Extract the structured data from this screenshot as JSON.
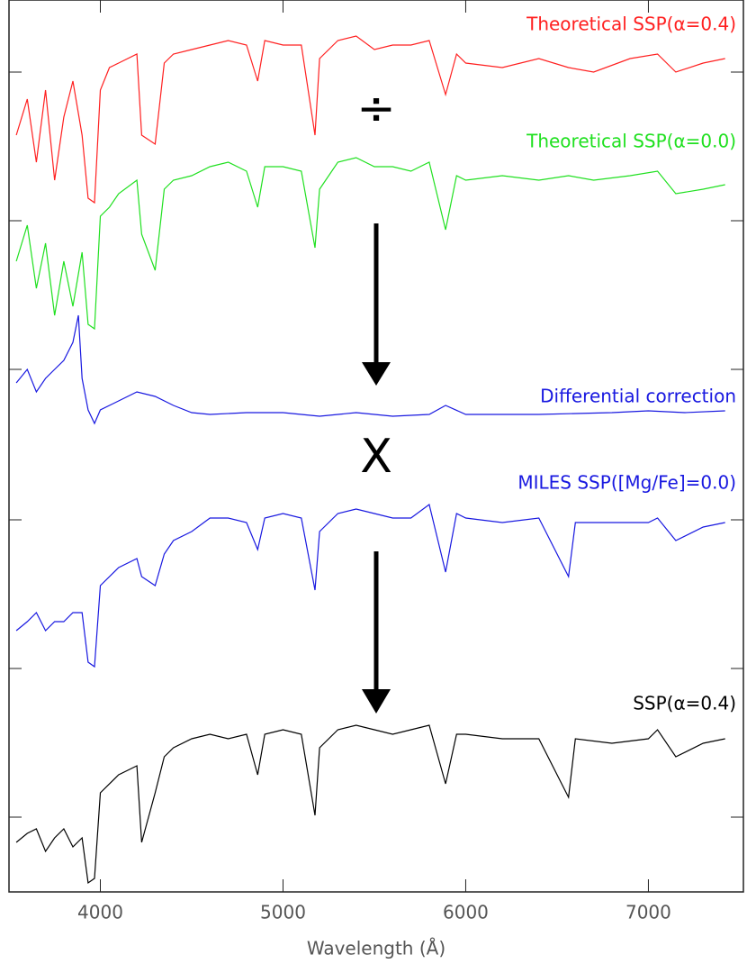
{
  "chart_data": {
    "type": "line",
    "xlabel": "Wavelength (Å)",
    "xlim": [
      3500,
      7520
    ],
    "xticks": [
      4000,
      5000,
      6000,
      7000
    ],
    "ylim": [
      0,
      990
    ],
    "yticks": [
      83,
      248,
      413,
      580,
      745,
      910
    ],
    "show_ytick_labels": false,
    "series": [
      {
        "name": "Theoretical SSP(α=0.4)",
        "color": "#ff2020",
        "x": [
          3540,
          3600,
          3650,
          3700,
          3750,
          3800,
          3850,
          3900,
          3933,
          3968,
          4000,
          4050,
          4100,
          4200,
          4226,
          4300,
          4350,
          4400,
          4500,
          4600,
          4700,
          4800,
          4861,
          4900,
          5000,
          5100,
          5175,
          5200,
          5300,
          5400,
          5500,
          5600,
          5700,
          5800,
          5890,
          5950,
          6000,
          6200,
          6400,
          6563,
          6700,
          6900,
          7050,
          7150,
          7300,
          7420
        ],
        "values": [
          840,
          880,
          810,
          890,
          790,
          860,
          900,
          840,
          770,
          765,
          890,
          915,
          920,
          930,
          840,
          830,
          920,
          930,
          935,
          940,
          945,
          940,
          900,
          945,
          940,
          940,
          840,
          925,
          945,
          950,
          935,
          940,
          940,
          945,
          885,
          930,
          920,
          915,
          925,
          915,
          910,
          925,
          930,
          910,
          920,
          925
        ]
      },
      {
        "name": "Theoretical SSP(α=0.0)",
        "color": "#20e020",
        "x": [
          3540,
          3600,
          3650,
          3700,
          3750,
          3800,
          3850,
          3900,
          3933,
          3968,
          4000,
          4050,
          4100,
          4200,
          4226,
          4300,
          4350,
          4400,
          4500,
          4600,
          4700,
          4800,
          4861,
          4900,
          5000,
          5100,
          5175,
          5200,
          5300,
          5400,
          5500,
          5600,
          5700,
          5800,
          5890,
          5950,
          6000,
          6200,
          6400,
          6563,
          6700,
          6900,
          7050,
          7150,
          7300,
          7420
        ],
        "values": [
          700,
          740,
          670,
          720,
          640,
          700,
          650,
          710,
          630,
          625,
          750,
          760,
          775,
          790,
          730,
          690,
          780,
          790,
          795,
          805,
          810,
          800,
          760,
          805,
          805,
          800,
          715,
          780,
          810,
          815,
          805,
          805,
          800,
          810,
          735,
          795,
          790,
          795,
          790,
          795,
          790,
          795,
          800,
          775,
          780,
          785
        ]
      },
      {
        "name": "Differential correction",
        "color": "#1818e0",
        "x": [
          3540,
          3600,
          3650,
          3700,
          3750,
          3800,
          3850,
          3880,
          3900,
          3933,
          3968,
          4000,
          4100,
          4200,
          4300,
          4400,
          4500,
          4600,
          4800,
          5000,
          5200,
          5400,
          5600,
          5800,
          5890,
          6000,
          6400,
          6800,
          7000,
          7200,
          7420
        ],
        "values": [
          565,
          580,
          555,
          570,
          580,
          590,
          610,
          640,
          570,
          535,
          520,
          535,
          545,
          555,
          550,
          540,
          532,
          530,
          532,
          532,
          528,
          532,
          528,
          530,
          540,
          530,
          530,
          532,
          534,
          532,
          534
        ]
      },
      {
        "name": "MILES SSP([Mg/Fe]=0.0)",
        "color": "#1818e0",
        "x": [
          3540,
          3600,
          3650,
          3700,
          3750,
          3800,
          3850,
          3900,
          3933,
          3968,
          4000,
          4100,
          4200,
          4226,
          4300,
          4350,
          4400,
          4500,
          4600,
          4700,
          4800,
          4861,
          4900,
          5000,
          5100,
          5175,
          5200,
          5300,
          5400,
          5500,
          5600,
          5700,
          5800,
          5890,
          5950,
          6000,
          6200,
          6400,
          6563,
          6600,
          6800,
          7000,
          7050,
          7150,
          7300,
          7420
        ],
        "values": [
          290,
          300,
          310,
          290,
          300,
          300,
          310,
          310,
          255,
          250,
          340,
          360,
          370,
          350,
          340,
          375,
          390,
          400,
          415,
          415,
          410,
          380,
          415,
          420,
          415,
          335,
          400,
          420,
          425,
          420,
          415,
          415,
          430,
          355,
          420,
          415,
          410,
          415,
          350,
          410,
          410,
          410,
          415,
          390,
          405,
          410
        ]
      },
      {
        "name": "SSP(α=0.4)",
        "color": "#000000",
        "x": [
          3540,
          3600,
          3650,
          3700,
          3750,
          3800,
          3850,
          3900,
          3933,
          3968,
          4000,
          4100,
          4200,
          4226,
          4300,
          4350,
          4400,
          4500,
          4600,
          4700,
          4800,
          4861,
          4900,
          5000,
          5100,
          5175,
          5200,
          5300,
          5400,
          5500,
          5600,
          5700,
          5800,
          5890,
          5950,
          6000,
          6200,
          6400,
          6563,
          6600,
          6800,
          7000,
          7050,
          7150,
          7300,
          7420
        ],
        "values": [
          55,
          65,
          70,
          45,
          60,
          70,
          50,
          60,
          10,
          15,
          110,
          130,
          140,
          55,
          110,
          150,
          160,
          170,
          175,
          170,
          175,
          130,
          175,
          180,
          175,
          85,
          160,
          180,
          185,
          180,
          175,
          180,
          185,
          120,
          175,
          175,
          170,
          170,
          105,
          170,
          165,
          170,
          180,
          150,
          165,
          170
        ]
      }
    ],
    "annotations": [
      "÷",
      "X"
    ]
  }
}
